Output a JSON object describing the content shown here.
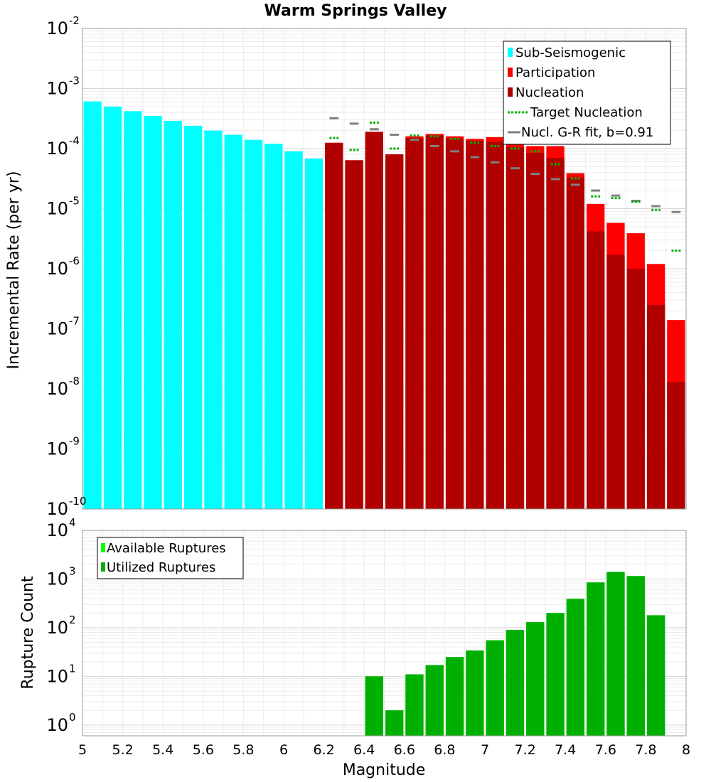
{
  "chart_data": [
    {
      "type": "bar",
      "title": "Warm Springs Valley",
      "xlabel": "",
      "ylabel": "Incremental Rate (per yr)",
      "yscale": "log",
      "ylim": [
        1e-10,
        0.01
      ],
      "xlim": [
        5,
        8
      ],
      "y_ticks": [
        {
          "base": "10",
          "exp": "-10",
          "value": 1e-10
        },
        {
          "base": "10",
          "exp": "-9",
          "value": 1e-09
        },
        {
          "base": "10",
          "exp": "-8",
          "value": 1e-08
        },
        {
          "base": "10",
          "exp": "-7",
          "value": 1e-07
        },
        {
          "base": "10",
          "exp": "-6",
          "value": 1e-06
        },
        {
          "base": "10",
          "exp": "-5",
          "value": 1e-05
        },
        {
          "base": "10",
          "exp": "-4",
          "value": 0.0001
        },
        {
          "base": "10",
          "exp": "-3",
          "value": 0.001
        },
        {
          "base": "10",
          "exp": "-2",
          "value": 0.01
        }
      ],
      "legend": [
        {
          "label": "Sub-Seismogenic",
          "color": "#00ffff",
          "style": "box"
        },
        {
          "label": "Participation",
          "color": "#ff0000",
          "style": "box"
        },
        {
          "label": "Nucleation",
          "color": "#b00000",
          "style": "box"
        },
        {
          "label": "Target Nucleation",
          "color": "#00b000",
          "style": "dotted"
        },
        {
          "label": "Nucl. G-R fit, b=0.91",
          "color": "#808080",
          "style": "line"
        }
      ],
      "series": [
        {
          "name": "Sub-Seismogenic",
          "color": "#00ffff",
          "x": [
            5.05,
            5.15,
            5.25,
            5.35,
            5.45,
            5.55,
            5.65,
            5.75,
            5.85,
            5.95,
            6.05,
            6.15
          ],
          "values": [
            0.00061,
            0.0005,
            0.00042,
            0.00035,
            0.00029,
            0.00024,
            0.0002,
            0.00017,
            0.00014,
            0.00012,
            9e-05,
            6.8e-05
          ]
        },
        {
          "name": "Participation",
          "color": "#ff0000",
          "x": [
            6.25,
            6.35,
            6.45,
            6.55,
            6.65,
            6.75,
            6.85,
            6.95,
            7.05,
            7.15,
            7.25,
            7.35,
            7.45,
            7.55,
            7.65,
            7.75,
            7.85,
            7.95
          ],
          "values": [
            0.000125,
            6.4e-05,
            0.00019,
            8e-05,
            0.00016,
            0.000175,
            0.00016,
            0.000145,
            0.000155,
            0.00012,
            0.00011,
            0.00011,
            3.9e-05,
            1.2e-05,
            5.8e-06,
            3.9e-06,
            1.2e-06,
            1.4e-07
          ]
        },
        {
          "name": "Nucleation",
          "color": "#b00000",
          "x": [
            6.25,
            6.35,
            6.45,
            6.55,
            6.65,
            6.75,
            6.85,
            6.95,
            7.05,
            7.15,
            7.25,
            7.35,
            7.45,
            7.55,
            7.65,
            7.75,
            7.85,
            7.95
          ],
          "values": [
            0.000125,
            6.4e-05,
            0.00019,
            8e-05,
            0.00015,
            0.000165,
            0.000145,
            0.000135,
            0.00013,
            0.000105,
            8.5e-05,
            7e-05,
            3.3e-05,
            4.2e-06,
            1.7e-06,
            1e-06,
            2.5e-07,
            1.3e-08
          ]
        },
        {
          "name": "Target Nucleation",
          "color": "#00b000",
          "x": [
            6.25,
            6.35,
            6.45,
            6.55,
            6.65,
            6.75,
            6.85,
            6.95,
            7.05,
            7.15,
            7.25,
            7.35,
            7.45,
            7.55,
            7.65,
            7.75,
            7.85,
            7.95
          ],
          "values": [
            0.00015,
            9.5e-05,
            0.00027,
            0.0001,
            0.000165,
            0.00016,
            0.000145,
            0.000125,
            0.00011,
            0.0001,
            9e-05,
            5.5e-05,
            3.2e-05,
            1.6e-05,
            1.5e-05,
            1.3e-05,
            9.5e-06,
            2e-06
          ]
        },
        {
          "name": "Nucl. G-R fit, b=0.91",
          "color": "#808080",
          "x": [
            6.25,
            6.35,
            6.45,
            6.55,
            6.65,
            6.75,
            6.85,
            6.95,
            7.05,
            7.15,
            7.25,
            7.35,
            7.45,
            7.55,
            7.65,
            7.75,
            7.85,
            7.95
          ],
          "values": [
            0.00032,
            0.00026,
            0.00021,
            0.00017,
            0.00014,
            0.00011,
            9e-05,
            7.2e-05,
            5.9e-05,
            4.7e-05,
            3.8e-05,
            3.1e-05,
            2.5e-05,
            2e-05,
            1.65e-05,
            1.35e-05,
            1.1e-05,
            8.8e-06
          ]
        }
      ]
    },
    {
      "type": "bar",
      "title": "",
      "xlabel": "Magnitude",
      "ylabel": "Rupture Count",
      "yscale": "log",
      "ylim": [
        0.6,
        10000
      ],
      "xlim": [
        5,
        8
      ],
      "x_ticks": [
        "5",
        "5.2",
        "5.4",
        "5.6",
        "5.8",
        "6",
        "6.2",
        "6.4",
        "6.6",
        "6.8",
        "7",
        "7.2",
        "7.4",
        "7.6",
        "7.8",
        "8"
      ],
      "y_ticks": [
        {
          "base": "10",
          "exp": "0",
          "value": 1
        },
        {
          "base": "10",
          "exp": "1",
          "value": 10
        },
        {
          "base": "10",
          "exp": "2",
          "value": 100
        },
        {
          "base": "10",
          "exp": "3",
          "value": 1000
        },
        {
          "base": "10",
          "exp": "4",
          "value": 10000
        }
      ],
      "legend": [
        {
          "label": "Available Ruptures",
          "color": "#00ff00",
          "style": "box"
        },
        {
          "label": "Utilized Ruptures",
          "color": "#00b000",
          "style": "box"
        }
      ],
      "series": [
        {
          "name": "Available Ruptures",
          "color": "#00ff00",
          "x": [
            6.45,
            6.55,
            6.65,
            6.75,
            6.85,
            6.95,
            7.05,
            7.15,
            7.25,
            7.35,
            7.45,
            7.55,
            7.65,
            7.75,
            7.85
          ],
          "values": [
            10,
            2,
            11,
            17,
            25,
            34,
            55,
            90,
            130,
            200,
            390,
            850,
            1400,
            1150,
            180
          ]
        },
        {
          "name": "Utilized Ruptures",
          "color": "#00b000",
          "x": [
            6.45,
            6.55,
            6.65,
            6.75,
            6.85,
            6.95,
            7.05,
            7.15,
            7.25,
            7.35,
            7.45,
            7.55,
            7.65,
            7.75,
            7.85
          ],
          "values": [
            10,
            2,
            11,
            17,
            25,
            34,
            55,
            90,
            130,
            200,
            390,
            850,
            1400,
            1150,
            180
          ]
        }
      ]
    }
  ]
}
